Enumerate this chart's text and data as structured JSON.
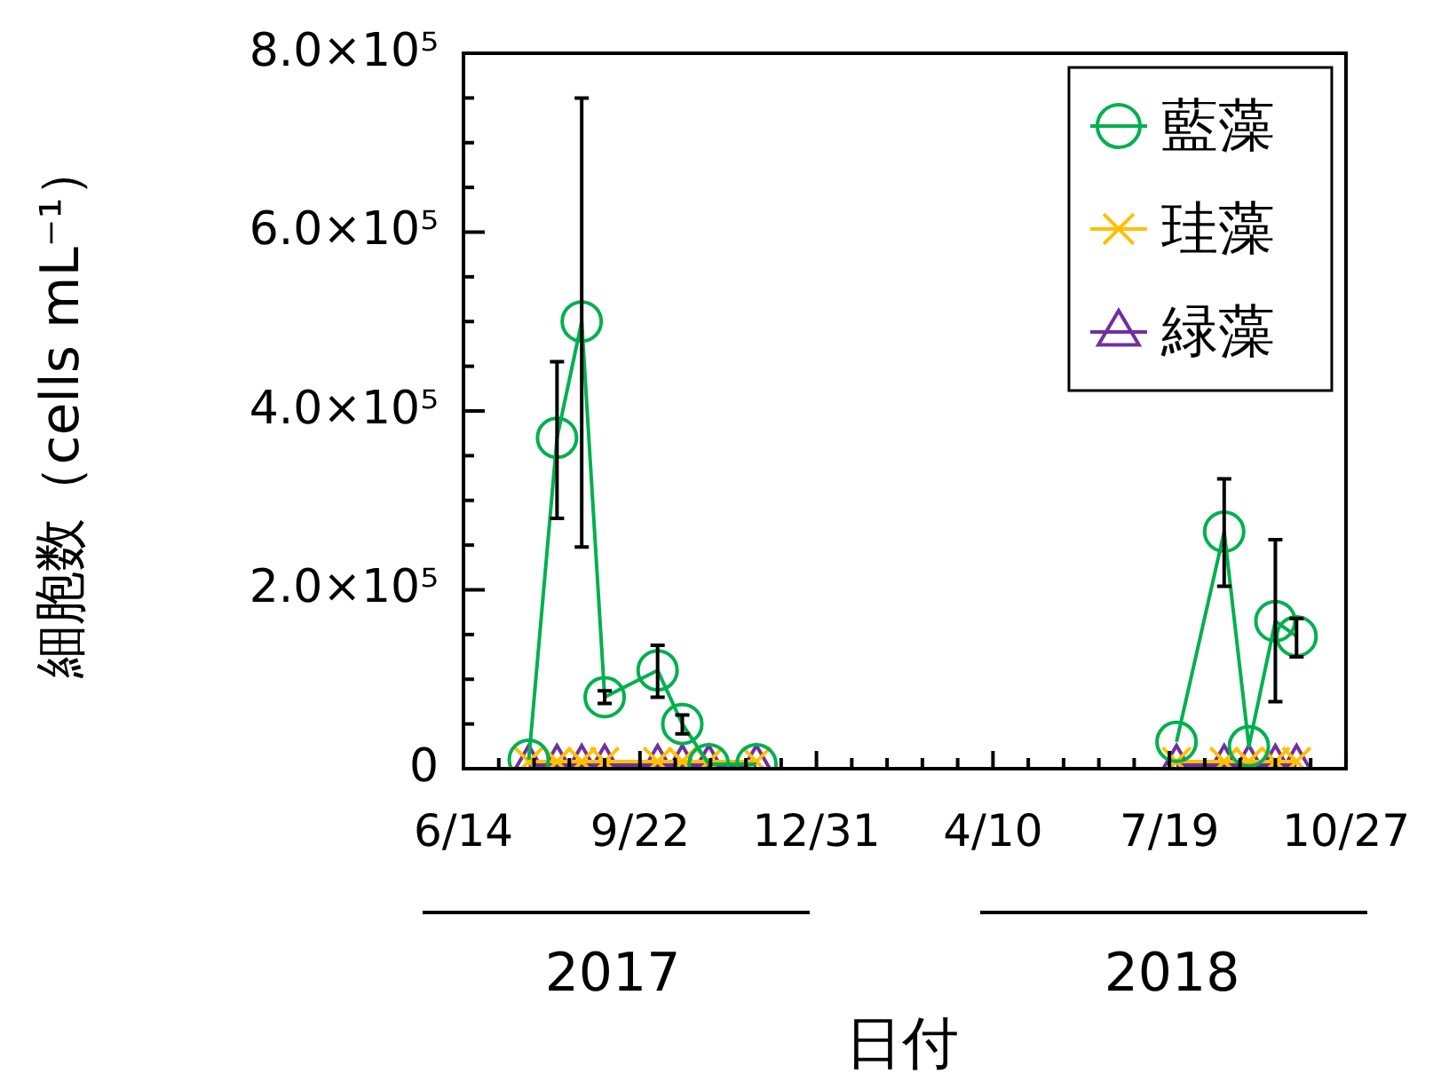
{
  "chart_data": {
    "type": "line",
    "xlabel": "日付",
    "ylabel": "細胞数（cells mL⁻¹）",
    "x": [
      "2017-07-21",
      "2017-08-06",
      "2017-08-20",
      "2017-09-02",
      "2017-10-02",
      "2017-10-16",
      "2017-10-31",
      "2017-11-27",
      "2018-04-10",
      "2018-07-23",
      "2018-08-19",
      "2018-09-02",
      "2018-09-17",
      "2018-09-29"
    ],
    "series": [
      {
        "name": "藍藻",
        "color": "#00b050",
        "marker": "circle",
        "values": [
          10000,
          370000,
          500000,
          80000,
          110000,
          50000,
          5000,
          5000,
          null,
          30000,
          265000,
          25000,
          165000,
          148000
        ],
        "errors": [
          null,
          [
            280000,
            455000
          ],
          [
            248000,
            750000
          ],
          [
            73000,
            87000
          ],
          [
            80000,
            138000
          ],
          [
            39000,
            60000
          ],
          null,
          null,
          null,
          null,
          [
            204000,
            324000
          ],
          null,
          [
            75000,
            256000
          ],
          [
            125000,
            168000
          ]
        ]
      },
      {
        "name": "珪藻",
        "color": "#ffc000",
        "marker": "cross",
        "values": [
          8000,
          8000,
          8000,
          8000,
          8000,
          8000,
          8000,
          8000,
          null,
          8000,
          8000,
          8000,
          8000,
          8000
        ]
      },
      {
        "name": "緑藻",
        "color": "#7030a0",
        "marker": "triangle",
        "values": [
          4000,
          4000,
          4000,
          4000,
          4000,
          4000,
          4000,
          4000,
          null,
          4000,
          4000,
          4000,
          4000,
          4000
        ]
      }
    ],
    "xlim": [
      "2017-06-14",
      "2018-10-27"
    ],
    "xticks": [
      {
        "value": "2017-06-14",
        "label": "6/14"
      },
      {
        "value": "2017-09-22",
        "label": "9/22"
      },
      {
        "value": "2017-12-31",
        "label": "12/31"
      },
      {
        "value": "2018-04-10",
        "label": "4/10"
      },
      {
        "value": "2018-07-19",
        "label": "7/19"
      },
      {
        "value": "2018-10-27",
        "label": "10/27"
      }
    ],
    "ylim": [
      0,
      800000
    ],
    "yticks": [
      0,
      {
        "value": 50000,
        "label": null
      },
      {
        "value": 100000,
        "label": null
      },
      {
        "value": 150000,
        "label": null
      },
      {
        "value": 200000,
        "label": "2.0×10⁵"
      },
      {
        "value": 250000,
        "label": null
      },
      {
        "value": 300000,
        "label": null
      },
      {
        "value": 350000,
        "label": null
      },
      {
        "value": 400000,
        "label": "4.0×10⁵"
      },
      {
        "value": 450000,
        "label": null
      },
      {
        "value": 500000,
        "label": null
      },
      {
        "value": 550000,
        "label": null
      },
      {
        "value": 600000,
        "label": "6.0×10⁵"
      },
      {
        "value": 650000,
        "label": null
      },
      {
        "value": 700000,
        "label": null
      },
      {
        "value": 750000,
        "label": null
      },
      {
        "value": 800000,
        "label": "8.0×10⁵"
      }
    ],
    "annotations": [
      "2017",
      "2018"
    ],
    "legend": "top right",
    "grid": false
  }
}
